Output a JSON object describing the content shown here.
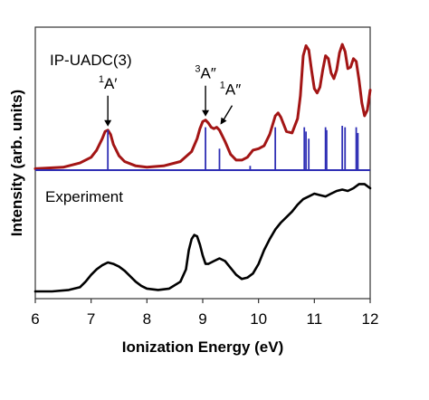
{
  "chart_data": {
    "type": "line",
    "xlabel": "Ionization Energy (eV)",
    "ylabel": "Intensity (arb. units)",
    "xlim": [
      6,
      12
    ],
    "x_ticks": [
      "6",
      "7",
      "8",
      "9",
      "10",
      "11",
      "12"
    ],
    "y_tick_labels": false,
    "grid": false,
    "panels": [
      {
        "label": "IP-UADC(3)",
        "series": [
          {
            "style": "line",
            "color": "#a31515",
            "x": [
              6.0,
              6.5,
              6.8,
              7.0,
              7.1,
              7.2,
              7.25,
              7.3,
              7.35,
              7.4,
              7.5,
              7.6,
              7.8,
              8.0,
              8.3,
              8.6,
              8.8,
              8.9,
              8.95,
              9.0,
              9.05,
              9.1,
              9.15,
              9.2,
              9.25,
              9.3,
              9.4,
              9.5,
              9.6,
              9.7,
              9.8,
              9.9,
              10.0,
              10.1,
              10.2,
              10.3,
              10.35,
              10.4,
              10.5,
              10.6,
              10.7,
              10.75,
              10.8,
              10.85,
              10.9,
              10.95,
              11.0,
              11.05,
              11.1,
              11.15,
              11.2,
              11.25,
              11.3,
              11.35,
              11.4,
              11.45,
              11.5,
              11.55,
              11.6,
              11.65,
              11.7,
              11.75,
              11.8,
              11.85,
              11.9,
              11.95,
              12.0
            ],
            "y": [
              0.01,
              0.02,
              0.05,
              0.09,
              0.14,
              0.22,
              0.27,
              0.28,
              0.25,
              0.18,
              0.1,
              0.06,
              0.03,
              0.02,
              0.03,
              0.06,
              0.13,
              0.22,
              0.29,
              0.34,
              0.35,
              0.33,
              0.3,
              0.29,
              0.3,
              0.28,
              0.2,
              0.11,
              0.07,
              0.07,
              0.09,
              0.14,
              0.15,
              0.17,
              0.25,
              0.38,
              0.4,
              0.37,
              0.27,
              0.26,
              0.36,
              0.52,
              0.8,
              0.87,
              0.84,
              0.7,
              0.57,
              0.54,
              0.58,
              0.7,
              0.8,
              0.78,
              0.68,
              0.64,
              0.7,
              0.82,
              0.88,
              0.83,
              0.71,
              0.72,
              0.78,
              0.76,
              0.63,
              0.47,
              0.38,
              0.42,
              0.56
            ]
          },
          {
            "style": "stick",
            "color": "#2f2fb5",
            "x": [
              7.3,
              9.05,
              9.3,
              9.85,
              10.3,
              10.82,
              10.85,
              10.9,
              11.2,
              11.22,
              11.5,
              11.55,
              11.75,
              11.78
            ],
            "y": [
              0.28,
              0.3,
              0.15,
              0.03,
              0.3,
              0.3,
              0.27,
              0.22,
              0.3,
              0.28,
              0.31,
              0.3,
              0.3,
              0.26
            ]
          }
        ],
        "annotations": [
          {
            "sup": "1",
            "text": "A′",
            "x": 7.3,
            "y": 0.28,
            "arrow": "down"
          },
          {
            "sup": "3",
            "text": "A″",
            "x": 9.05,
            "y": 0.35,
            "arrow": "down"
          },
          {
            "sup": "1",
            "text": "A″",
            "x": 9.3,
            "y": 0.3,
            "arrow": "down-left"
          }
        ]
      },
      {
        "label": "Experiment",
        "series": [
          {
            "style": "line",
            "color": "#000000",
            "x": [
              6.0,
              6.3,
              6.6,
              6.8,
              6.9,
              7.0,
              7.1,
              7.2,
              7.3,
              7.4,
              7.5,
              7.6,
              7.7,
              7.8,
              7.9,
              8.0,
              8.2,
              8.4,
              8.6,
              8.7,
              8.75,
              8.8,
              8.85,
              8.9,
              8.95,
              9.0,
              9.05,
              9.1,
              9.2,
              9.3,
              9.4,
              9.5,
              9.6,
              9.7,
              9.8,
              9.9,
              10.0,
              10.1,
              10.2,
              10.3,
              10.4,
              10.5,
              10.6,
              10.7,
              10.8,
              10.9,
              11.0,
              11.1,
              11.2,
              11.3,
              11.4,
              11.5,
              11.6,
              11.7,
              11.8,
              11.9,
              12.0
            ],
            "y": [
              0.02,
              0.02,
              0.03,
              0.05,
              0.09,
              0.14,
              0.18,
              0.21,
              0.23,
              0.22,
              0.2,
              0.17,
              0.13,
              0.09,
              0.06,
              0.04,
              0.03,
              0.04,
              0.09,
              0.18,
              0.32,
              0.4,
              0.43,
              0.42,
              0.36,
              0.28,
              0.22,
              0.22,
              0.24,
              0.26,
              0.24,
              0.19,
              0.14,
              0.11,
              0.12,
              0.15,
              0.22,
              0.32,
              0.4,
              0.47,
              0.52,
              0.56,
              0.6,
              0.65,
              0.69,
              0.71,
              0.73,
              0.72,
              0.71,
              0.73,
              0.75,
              0.76,
              0.75,
              0.77,
              0.8,
              0.8,
              0.77
            ]
          }
        ]
      }
    ]
  }
}
